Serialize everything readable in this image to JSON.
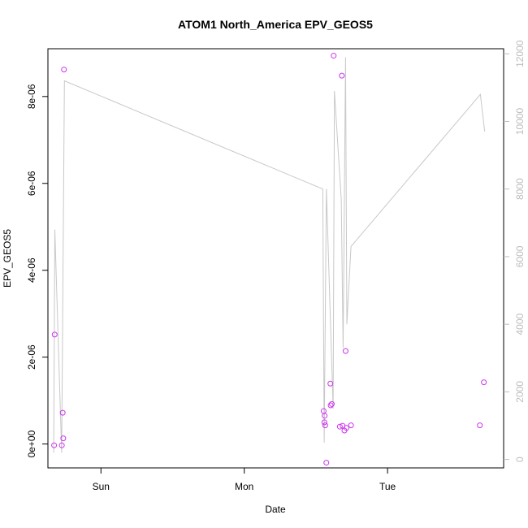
{
  "chart_data": {
    "type": "scatter",
    "title": "ATOM1 North_America EPV_GEOS5",
    "xlabel": "Date",
    "ylabel": "EPV_GEOS5",
    "x_ticks": [
      "Sun",
      "Mon",
      "Tue"
    ],
    "x_tick_days": [
      1,
      2,
      3
    ],
    "xlim_days": [
      0.63,
      3.81
    ],
    "ylim": [
      -5.5e-07,
      9.1e-06
    ],
    "y_ticks": [
      0,
      2e-06,
      4e-06,
      6e-06,
      8e-06
    ],
    "y_tick_labels": [
      "0e+00",
      "2e-06",
      "4e-06",
      "6e-06",
      "8e-06"
    ],
    "y2_ticks": [
      0,
      2000,
      4000,
      6000,
      8000,
      10000,
      12000
    ],
    "y2_tick_labels": [
      "0",
      "2000",
      "4000",
      "6000",
      "8000",
      "10000",
      "12000"
    ],
    "y2lim": [
      -250,
      12150
    ],
    "point_color": "#cc33ee",
    "line_color": "#c8c8c8",
    "points": [
      {
        "day": 0.673,
        "value": -3e-08
      },
      {
        "day": 0.677,
        "value": 2.52e-06
      },
      {
        "day": 0.727,
        "value": -3e-08
      },
      {
        "day": 0.733,
        "value": 7.2e-07
      },
      {
        "day": 0.737,
        "value": 1.3e-07
      },
      {
        "day": 0.742,
        "value": 8.62e-06
      },
      {
        "day": 2.554,
        "value": 7.6e-07
      },
      {
        "day": 2.559,
        "value": 5e-07
      },
      {
        "day": 2.561,
        "value": 6.5e-07
      },
      {
        "day": 2.565,
        "value": 4.3e-07
      },
      {
        "day": 2.573,
        "value": -4.3e-07
      },
      {
        "day": 2.601,
        "value": 1.39e-06
      },
      {
        "day": 2.603,
        "value": 8.9e-07
      },
      {
        "day": 2.611,
        "value": 9.2e-07
      },
      {
        "day": 2.624,
        "value": 8.94e-06
      },
      {
        "day": 2.667,
        "value": 4e-07
      },
      {
        "day": 2.681,
        "value": 8.48e-06
      },
      {
        "day": 2.686,
        "value": 4.2e-07
      },
      {
        "day": 2.699,
        "value": 3.1e-07
      },
      {
        "day": 2.707,
        "value": 2.14e-06
      },
      {
        "day": 2.713,
        "value": 3.7e-07
      },
      {
        "day": 2.745,
        "value": 4.3e-07
      },
      {
        "day": 3.644,
        "value": 4.3e-07
      },
      {
        "day": 3.672,
        "value": 1.42e-06
      }
    ],
    "line": [
      {
        "day": 0.67,
        "value": 200
      },
      {
        "day": 0.678,
        "value": 6800
      },
      {
        "day": 0.726,
        "value": 200
      },
      {
        "day": 0.745,
        "value": 11200
      },
      {
        "day": 2.548,
        "value": 8000
      },
      {
        "day": 2.558,
        "value": 500
      },
      {
        "day": 2.573,
        "value": 8000
      },
      {
        "day": 2.62,
        "value": 1500
      },
      {
        "day": 2.629,
        "value": 10900
      },
      {
        "day": 2.677,
        "value": 7700
      },
      {
        "day": 2.69,
        "value": 3300
      },
      {
        "day": 2.707,
        "value": 11900
      },
      {
        "day": 2.716,
        "value": 4000
      },
      {
        "day": 2.745,
        "value": 6300
      },
      {
        "day": 3.648,
        "value": 10800
      },
      {
        "day": 3.678,
        "value": 9700
      }
    ]
  }
}
